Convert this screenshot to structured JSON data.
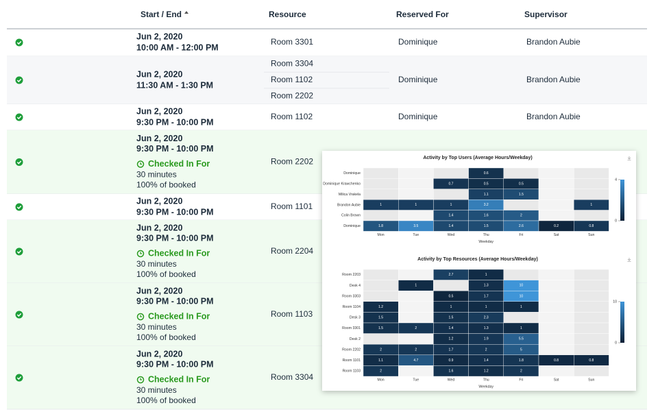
{
  "table": {
    "columns": [
      "Start / End",
      "Resource",
      "Reserved For",
      "Supervisor"
    ],
    "rows": [
      {
        "date": "Jun 2, 2020",
        "time": "10:00 AM - 12:00 PM",
        "resources": [
          "Room 3301"
        ],
        "reserved_for": "Dominique",
        "supervisor": "Brandon Aubie"
      },
      {
        "date": "Jun 2, 2020",
        "time": "11:30 AM - 1:30 PM",
        "resources": [
          "Room 3304",
          "Room 1102",
          "Room 2202"
        ],
        "reserved_for": "Dominique",
        "supervisor": "Brandon Aubie"
      },
      {
        "date": "Jun 2, 2020",
        "time": "9:30 PM - 10:00 PM",
        "resources": [
          "Room 1102"
        ],
        "reserved_for": "Dominique",
        "supervisor": "Brandon Aubie"
      },
      {
        "date": "Jun 2, 2020",
        "time": "9:30 PM - 10:00 PM",
        "resources": [
          "Room 2202"
        ],
        "checked_in": {
          "label": "Checked In For",
          "duration": "30 minutes",
          "share": "100% of booked"
        }
      },
      {
        "date": "Jun 2, 2020",
        "time": "9:30 PM - 10:00 PM",
        "resources": [
          "Room 1101"
        ]
      },
      {
        "date": "Jun 2, 2020",
        "time": "9:30 PM - 10:00 PM",
        "resources": [
          "Room 2204"
        ],
        "checked_in": {
          "label": "Checked In For",
          "duration": "30 minutes",
          "share": "100% of booked"
        }
      },
      {
        "date": "Jun 2, 2020",
        "time": "9:30 PM - 10:00 PM",
        "resources": [
          "Room 1103"
        ],
        "checked_in": {
          "label": "Checked In For",
          "duration": "30 minutes",
          "share": "100% of booked"
        }
      },
      {
        "date": "Jun 2, 2020",
        "time": "9:30 PM - 10:00 PM",
        "resources": [
          "Room 3304"
        ],
        "checked_in": {
          "label": "Checked In For",
          "duration": "30 minutes",
          "share": "100% of booked"
        }
      }
    ]
  },
  "chart_data": [
    {
      "type": "heatmap",
      "title": "Activity by Top Users (Average Hours/Weekday)",
      "x_label": "Weekday",
      "categories": [
        "Mon",
        "Tue",
        "Wed",
        "Thu",
        "Fri",
        "Sat",
        "Sun"
      ],
      "rows": [
        "Dominique",
        "Dominique Krawchenko",
        "Milica Vrakela",
        "Brandon Aubie",
        "Colin Brown",
        "Dominique"
      ],
      "values": [
        [
          null,
          null,
          null,
          0.6,
          null,
          null,
          null
        ],
        [
          null,
          null,
          0.7,
          0.5,
          0.5,
          null,
          null
        ],
        [
          null,
          null,
          null,
          1.1,
          1.5,
          null,
          null
        ],
        [
          1,
          1,
          1,
          3.2,
          null,
          null,
          1
        ],
        [
          null,
          null,
          1.4,
          1.6,
          2,
          null,
          null
        ],
        [
          1.8,
          3.5,
          1.4,
          1.5,
          2.6,
          0.2,
          0.8
        ]
      ],
      "zlim": [
        0,
        4
      ],
      "zticks": [
        0,
        4
      ],
      "colors": [
        "#0c2036",
        "#3f95d8"
      ]
    },
    {
      "type": "heatmap",
      "title": "Activity by Top Resources (Average Hours/Weekday)",
      "x_label": "Weekday",
      "categories": [
        "Mon",
        "Tue",
        "Wed",
        "Thu",
        "Fri",
        "Sat",
        "Sun"
      ],
      "rows": [
        "Room 2203",
        "Desk 4",
        "Room 3303",
        "Room 1104",
        "Desk 3",
        "Room 3301",
        "Desk 2",
        "Room 2202",
        "Room 1101",
        "Room 1103"
      ],
      "values": [
        [
          null,
          null,
          2.7,
          1,
          null,
          null,
          null
        ],
        [
          null,
          1,
          null,
          1.3,
          10,
          null,
          null
        ],
        [
          null,
          null,
          0.5,
          1.7,
          10,
          null,
          null
        ],
        [
          1.2,
          null,
          1,
          1,
          1,
          null,
          null
        ],
        [
          1.5,
          null,
          1.5,
          2.3,
          null,
          null,
          null
        ],
        [
          1.5,
          2,
          1.4,
          1.3,
          1,
          null,
          null
        ],
        [
          null,
          null,
          1.2,
          1.9,
          5.5,
          null,
          null
        ],
        [
          2,
          2,
          1.7,
          2,
          5,
          null,
          null
        ],
        [
          1.1,
          4.7,
          0.9,
          1.4,
          1.8,
          0.8,
          0.8
        ],
        [
          2,
          null,
          1.6,
          1.2,
          2,
          null,
          null
        ]
      ],
      "zlim": [
        0,
        10
      ],
      "zticks": [
        0,
        10
      ],
      "colors": [
        "#0c2036",
        "#3f95d8"
      ]
    }
  ]
}
